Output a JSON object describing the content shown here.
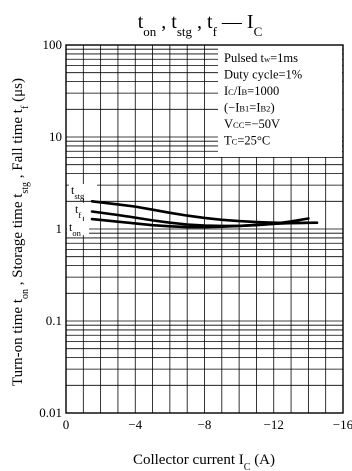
{
  "chart_data": {
    "type": "line",
    "title": "t_on , t_stg , t_f — I_C",
    "title_parts": {
      "t1": "t",
      "t1_sub": "on",
      "sep1": " , ",
      "t2": "t",
      "t2_sub": "stg",
      "sep2": " , ",
      "t3": "t",
      "t3_sub": "f",
      "dash": " — ",
      "t4": "I",
      "t4_sub": "C"
    },
    "xlabel": "Collector current  I_C  (A)",
    "xlabel_parts": {
      "main": "Collector current  I",
      "sub": "C",
      "unit": "  (A)"
    },
    "ylabel": "Turn-on time t_on , Storage time t_stg , Fall time t_f  (μs)",
    "ylabel_parts": {
      "a": "Turn-on time t",
      "a_sub": "on",
      "b": " , Storage time t",
      "b_sub": "stg",
      "c": " , Fall time t",
      "c_sub": "f",
      "d": "  (μs)"
    },
    "x_scale": "linear",
    "y_scale": "log",
    "xlim": [
      0,
      -16
    ],
    "ylim": [
      0.01,
      100
    ],
    "x_ticks": [
      0,
      -4,
      -8,
      -12,
      -16
    ],
    "x_tick_labels": [
      "0",
      "−4",
      "−8",
      "−12",
      "−16"
    ],
    "y_ticks": [
      0.01,
      0.1,
      1,
      10,
      100
    ],
    "y_tick_labels": [
      "0.01",
      "0.1",
      "1",
      "10",
      "100"
    ],
    "grid": true,
    "conditions": [
      {
        "main": "Pulsed t",
        "sub": "w",
        "rest": "=1ms"
      },
      {
        "main": "Duty cycle=1%",
        "sub": "",
        "rest": ""
      },
      {
        "main": "I",
        "sub": "C",
        "rest": "/I",
        "sub2": "B",
        "rest2": "=1000"
      },
      {
        "main": "(−I",
        "sub": "B1",
        "rest": "=I",
        "sub2": "B2",
        "rest2": ")"
      },
      {
        "main": "V",
        "sub": "CC",
        "rest": "=−50V"
      },
      {
        "main": "T",
        "sub": "C",
        "rest": "=25°C"
      }
    ],
    "series": [
      {
        "name": "t_stg",
        "label_main": "t",
        "label_sub": "stg",
        "x": [
          -1.5,
          -3,
          -4,
          -5,
          -6,
          -7,
          -8,
          -9,
          -10,
          -11,
          -12,
          -13,
          -14.5
        ],
        "y": [
          2.0,
          1.85,
          1.75,
          1.62,
          1.5,
          1.4,
          1.32,
          1.26,
          1.22,
          1.19,
          1.17,
          1.16,
          1.17
        ]
      },
      {
        "name": "t_f",
        "label_main": "t",
        "label_sub": "f",
        "x": [
          -1.5,
          -3,
          -4,
          -5,
          -6,
          -7,
          -8,
          -9,
          -10,
          -11,
          -12,
          -13,
          -14
        ],
        "y": [
          1.55,
          1.42,
          1.33,
          1.24,
          1.17,
          1.12,
          1.09,
          1.08,
          1.08,
          1.1,
          1.14,
          1.21,
          1.3
        ]
      },
      {
        "name": "t_on",
        "label_main": "t",
        "label_sub": "on",
        "x": [
          -1.5,
          -3,
          -4,
          -5,
          -6,
          -7,
          -8,
          -9,
          -10,
          -11,
          -12,
          -13,
          -14
        ],
        "y": [
          1.28,
          1.2,
          1.15,
          1.1,
          1.07,
          1.05,
          1.05,
          1.06,
          1.08,
          1.11,
          1.14,
          1.16,
          1.17
        ]
      }
    ]
  }
}
